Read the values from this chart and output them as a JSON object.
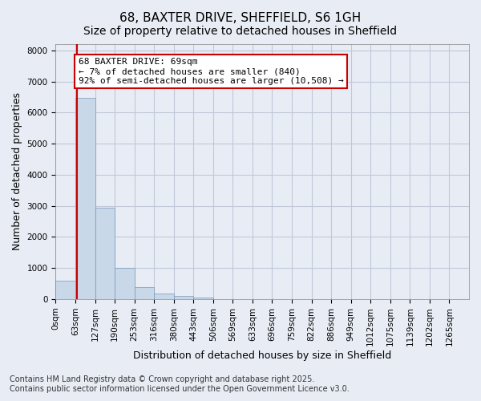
{
  "title": "68, BAXTER DRIVE, SHEFFIELD, S6 1GH",
  "subtitle": "Size of property relative to detached houses in Sheffield",
  "xlabel": "Distribution of detached houses by size in Sheffield",
  "ylabel": "Number of detached properties",
  "bar_color": "#c8d8e8",
  "bar_edge_color": "#7799bb",
  "grid_color": "#c0c8d8",
  "background_color": "#e8edf5",
  "bin_labels": [
    "0sqm",
    "63sqm",
    "127sqm",
    "190sqm",
    "253sqm",
    "316sqm",
    "380sqm",
    "443sqm",
    "506sqm",
    "569sqm",
    "633sqm",
    "696sqm",
    "759sqm",
    "822sqm",
    "886sqm",
    "949sqm",
    "1012sqm",
    "1075sqm",
    "1139sqm",
    "1202sqm",
    "1265sqm"
  ],
  "bar_values": [
    600,
    6480,
    2950,
    1000,
    380,
    175,
    90,
    50,
    0,
    0,
    0,
    0,
    0,
    0,
    0,
    0,
    0,
    0,
    0,
    0,
    0
  ],
  "ylim": [
    0,
    8200
  ],
  "yticks": [
    0,
    1000,
    2000,
    3000,
    4000,
    5000,
    6000,
    7000,
    8000
  ],
  "property_line_x": 1.095,
  "annotation_line1": "68 BAXTER DRIVE: 69sqm",
  "annotation_line2": "← 7% of detached houses are smaller (840)",
  "annotation_line3": "92% of semi-detached houses are larger (10,508) →",
  "annotation_box_color": "#ffffff",
  "annotation_box_edge_color": "#cc0000",
  "vline_color": "#cc0000",
  "footer1": "Contains HM Land Registry data © Crown copyright and database right 2025.",
  "footer2": "Contains public sector information licensed under the Open Government Licence v3.0.",
  "title_fontsize": 11,
  "subtitle_fontsize": 10,
  "axis_label_fontsize": 9,
  "tick_fontsize": 7.5,
  "annotation_fontsize": 8,
  "footer_fontsize": 7
}
